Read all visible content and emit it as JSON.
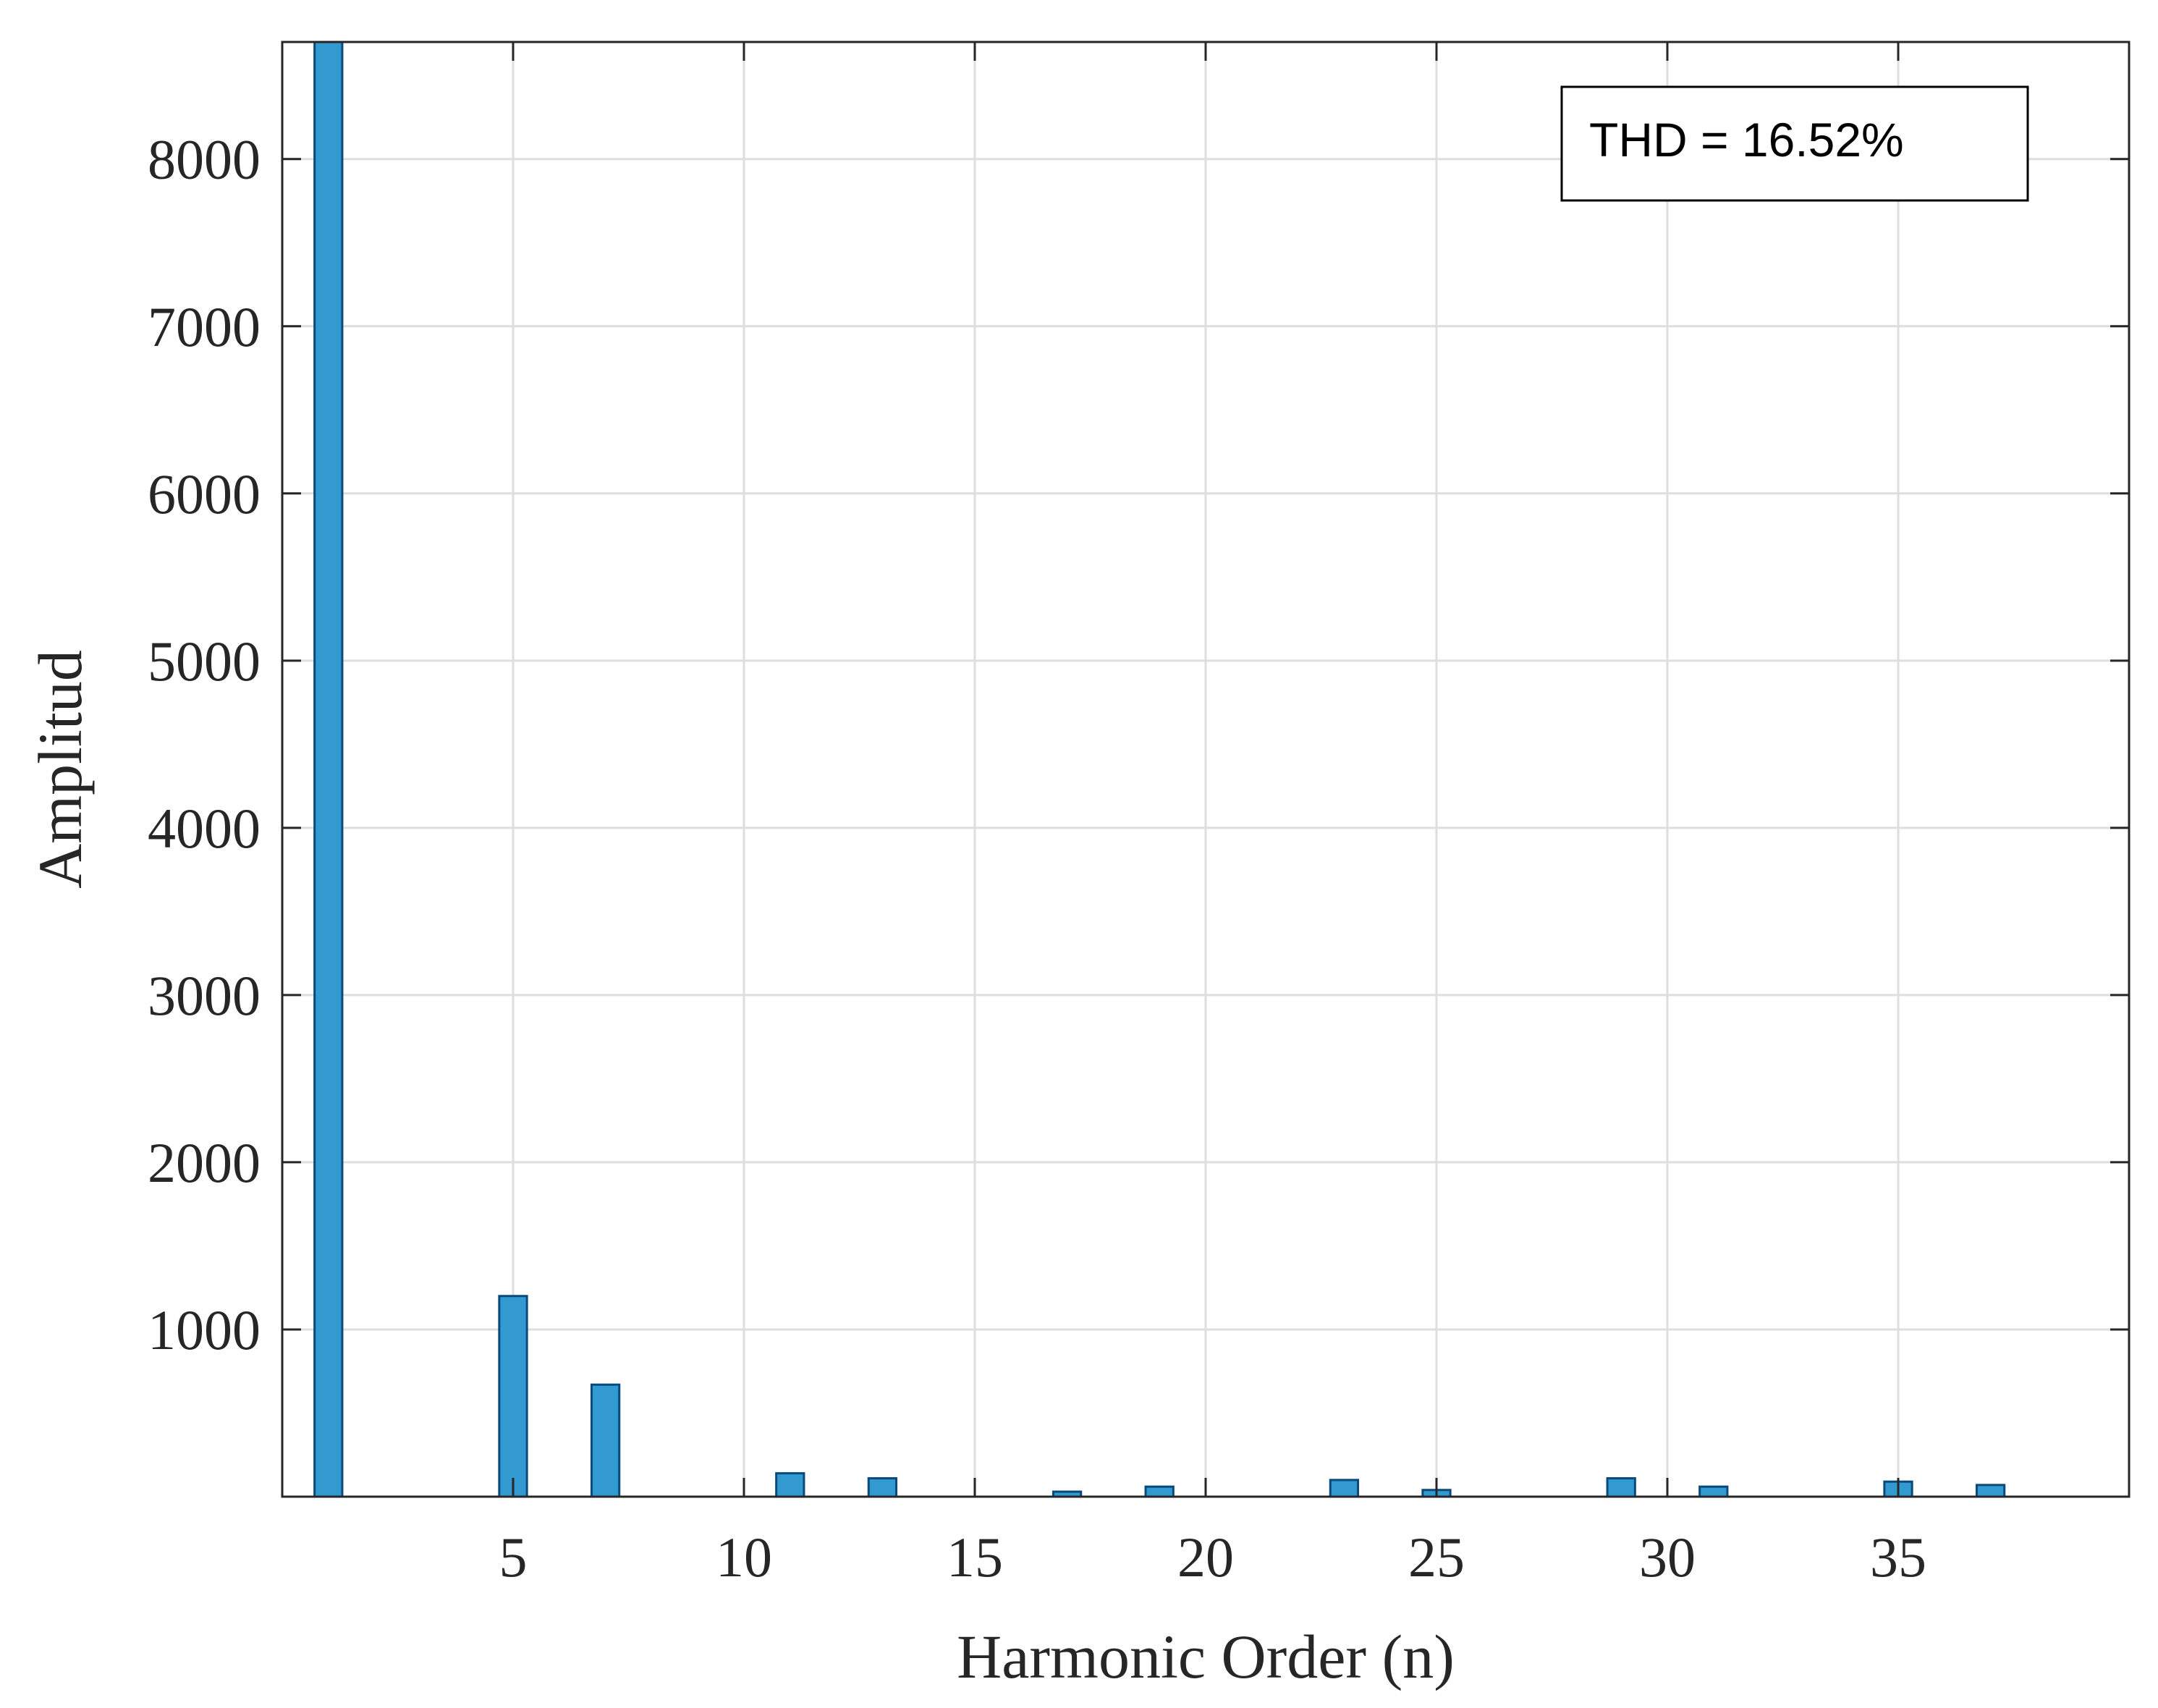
{
  "chart_data": {
    "type": "bar",
    "xlabel": "Harmonic Order (n)",
    "ylabel": "Amplitud",
    "annotation": "THD = 16.52%",
    "xlim": [
      0,
      40
    ],
    "ylim": [
      0,
      8700
    ],
    "xticks": [
      5,
      10,
      15,
      20,
      25,
      30,
      35
    ],
    "yticks": [
      1000,
      2000,
      3000,
      4000,
      5000,
      6000,
      7000,
      8000
    ],
    "grid": true,
    "annotation_placement": "top-right",
    "bar_color": "#3399D1",
    "bar_edge_color": "#0A4A7A",
    "x": [
      1,
      5,
      7,
      11,
      13,
      17,
      19,
      23,
      25,
      29,
      31,
      35,
      37
    ],
    "values": [
      8700,
      1200,
      670,
      140,
      110,
      30,
      60,
      100,
      40,
      110,
      60,
      90,
      70
    ]
  }
}
